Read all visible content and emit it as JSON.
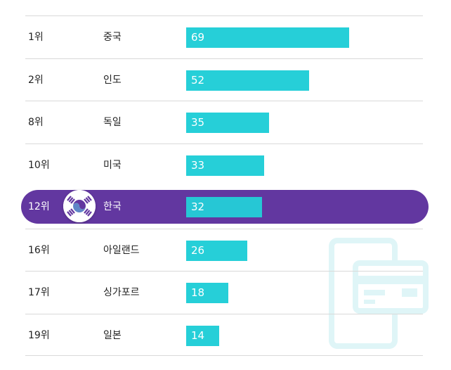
{
  "chart_data": {
    "type": "bar",
    "orientation": "horizontal",
    "title": "",
    "xlabel": "",
    "ylabel": "",
    "xlim": [
      0,
      100
    ],
    "highlight_index": 4,
    "colors": {
      "bar": "#26cfd8",
      "highlight_row": "#6237a0",
      "text": "#222222",
      "divider": "#d9d9d9"
    },
    "rows": [
      {
        "rank": "1위",
        "country": "중국",
        "value": 69
      },
      {
        "rank": "2위",
        "country": "인도",
        "value": 52
      },
      {
        "rank": "8위",
        "country": "독일",
        "value": 35
      },
      {
        "rank": "10위",
        "country": "미국",
        "value": 33
      },
      {
        "rank": "12위",
        "country": "한국",
        "value": 32,
        "icon": "korea-flag-emblem-icon"
      },
      {
        "rank": "16위",
        "country": "아일랜드",
        "value": 26
      },
      {
        "rank": "17위",
        "country": "싱가포르",
        "value": 18
      },
      {
        "rank": "19위",
        "country": "일본",
        "value": 14
      }
    ]
  },
  "decor": {
    "watermark_icon": "phone-card-icon"
  }
}
